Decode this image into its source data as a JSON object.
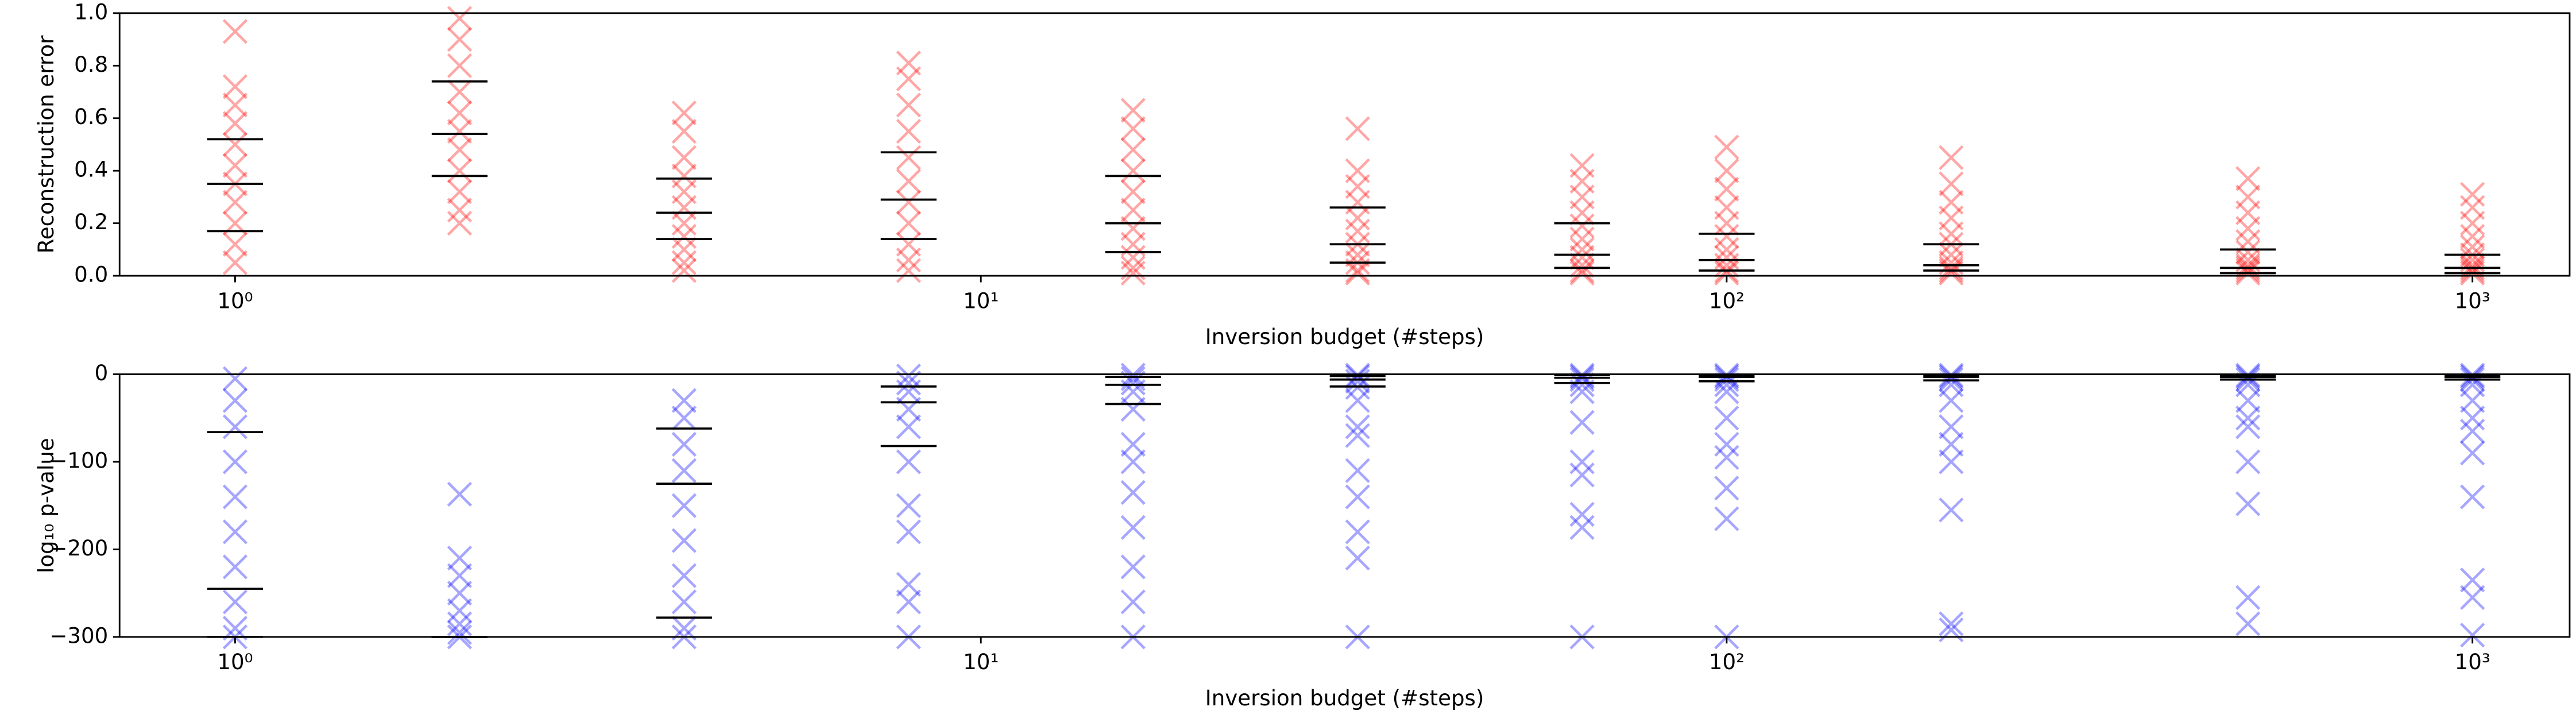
{
  "chart_data": [
    {
      "type": "scatter",
      "color": "#ff0000",
      "ylabel": "Reconstruction error",
      "xlabel": "Inversion budget (#steps)",
      "log_x": true,
      "xlim": [
        0.7,
        1350
      ],
      "ylim": [
        0,
        1
      ],
      "xticks": [
        {
          "value": 1,
          "label": "10⁰"
        },
        {
          "value": 10,
          "label": "10¹"
        },
        {
          "value": 100,
          "label": "10²"
        },
        {
          "value": 1000,
          "label": "10³"
        }
      ],
      "yticks": [
        {
          "value": 0,
          "label": "0.0"
        },
        {
          "value": 0.2,
          "label": "0.2"
        },
        {
          "value": 0.4,
          "label": "0.4"
        },
        {
          "value": 0.6,
          "label": "0.6"
        },
        {
          "value": 0.8,
          "label": "0.8"
        },
        {
          "value": 1,
          "label": "1.0"
        }
      ],
      "groups": [
        {
          "x": 1,
          "values": [
            0.93,
            0.72,
            0.65,
            0.58,
            0.5,
            0.42,
            0.35,
            0.28,
            0.2,
            0.12,
            0.05
          ],
          "quantiles": [
            0.17,
            0.35,
            0.52
          ]
        },
        {
          "x": 2,
          "values": [
            0.98,
            0.9,
            0.8,
            0.7,
            0.62,
            0.55,
            0.48,
            0.4,
            0.32,
            0.25,
            0.2
          ],
          "quantiles": [
            0.38,
            0.54,
            0.74
          ]
        },
        {
          "x": 4,
          "values": [
            0.62,
            0.55,
            0.45,
            0.38,
            0.32,
            0.26,
            0.2,
            0.15,
            0.1,
            0.05,
            0.02
          ],
          "quantiles": [
            0.14,
            0.24,
            0.37
          ]
        },
        {
          "x": 8,
          "values": [
            0.81,
            0.75,
            0.65,
            0.55,
            0.45,
            0.36,
            0.28,
            0.2,
            0.12,
            0.06,
            0.02
          ],
          "quantiles": [
            0.14,
            0.29,
            0.47
          ]
        },
        {
          "x": 16,
          "values": [
            0.63,
            0.56,
            0.48,
            0.4,
            0.32,
            0.25,
            0.18,
            0.12,
            0.07,
            0.03,
            0.01
          ],
          "quantiles": [
            0.09,
            0.2,
            0.38
          ]
        },
        {
          "x": 32,
          "values": [
            0.56,
            0.4,
            0.34,
            0.28,
            0.22,
            0.17,
            0.12,
            0.08,
            0.05,
            0.02,
            0.01
          ],
          "quantiles": [
            0.05,
            0.12,
            0.26
          ]
        },
        {
          "x": 64,
          "values": [
            0.42,
            0.36,
            0.3,
            0.24,
            0.19,
            0.14,
            0.1,
            0.07,
            0.04,
            0.02,
            0.01
          ],
          "quantiles": [
            0.03,
            0.08,
            0.2
          ]
        },
        {
          "x": 100,
          "values": [
            0.49,
            0.4,
            0.33,
            0.26,
            0.2,
            0.15,
            0.1,
            0.07,
            0.04,
            0.02,
            0.01
          ],
          "quantiles": [
            0.02,
            0.06,
            0.16
          ]
        },
        {
          "x": 200,
          "values": [
            0.45,
            0.35,
            0.28,
            0.22,
            0.16,
            0.12,
            0.08,
            0.05,
            0.03,
            0.02,
            0.01
          ],
          "quantiles": [
            0.02,
            0.04,
            0.12
          ]
        },
        {
          "x": 500,
          "values": [
            0.37,
            0.3,
            0.24,
            0.18,
            0.13,
            0.09,
            0.06,
            0.04,
            0.03,
            0.02,
            0.01
          ],
          "quantiles": [
            0.01,
            0.03,
            0.1
          ]
        },
        {
          "x": 1000,
          "values": [
            0.31,
            0.26,
            0.2,
            0.15,
            0.11,
            0.08,
            0.06,
            0.04,
            0.03,
            0.02,
            0.01
          ],
          "quantiles": [
            0.01,
            0.03,
            0.08
          ]
        }
      ]
    },
    {
      "type": "scatter",
      "color": "#0000ff",
      "ylabel": "log₁₀ p-value",
      "xlabel": "Inversion budget (#steps)",
      "log_x": true,
      "xlim": [
        0.7,
        1350
      ],
      "ylim": [
        -300,
        0
      ],
      "xticks": [
        {
          "value": 1,
          "label": "10⁰"
        },
        {
          "value": 10,
          "label": "10¹"
        },
        {
          "value": 100,
          "label": "10²"
        },
        {
          "value": 1000,
          "label": "10³"
        }
      ],
      "yticks": [
        0,
        {
          "value": -100,
          "label": "−100"
        },
        {
          "value": -200,
          "label": "−200"
        },
        {
          "value": -300,
          "label": "−300"
        }
      ],
      "groups": [
        {
          "x": 1,
          "values": [
            -5,
            -30,
            -60,
            -100,
            -140,
            -180,
            -220,
            -260,
            -290,
            -300
          ],
          "quantiles": [
            -300,
            -245,
            -66
          ]
        },
        {
          "x": 2,
          "values": [
            -137,
            -210,
            -230,
            -250,
            -270,
            -285,
            -295,
            -300
          ],
          "quantiles": [
            -300,
            -300,
            -300
          ]
        },
        {
          "x": 4,
          "values": [
            -30,
            -50,
            -80,
            -110,
            -150,
            -190,
            -230,
            -260,
            -290,
            -300
          ],
          "quantiles": [
            -278,
            -125,
            -62
          ]
        },
        {
          "x": 8,
          "values": [
            -2,
            -10,
            -20,
            -40,
            -60,
            -100,
            -150,
            -180,
            -240,
            -260,
            -300
          ],
          "quantiles": [
            -82,
            -32,
            -14
          ]
        },
        {
          "x": 16,
          "values": [
            -1,
            -5,
            -10,
            -20,
            -40,
            -80,
            -100,
            -135,
            -175,
            -220,
            -260,
            -300
          ],
          "quantiles": [
            -34,
            -12,
            -3
          ]
        },
        {
          "x": 32,
          "values": [
            -1,
            -3,
            -8,
            -15,
            -30,
            -60,
            -70,
            -110,
            -140,
            -180,
            -210,
            -300
          ],
          "quantiles": [
            -14,
            -6,
            -2
          ]
        },
        {
          "x": 64,
          "values": [
            -1,
            -3,
            -6,
            -12,
            -20,
            -55,
            -100,
            -115,
            -160,
            -175,
            -300
          ],
          "quantiles": [
            -10,
            -4,
            -1
          ]
        },
        {
          "x": 100,
          "values": [
            -1,
            -3,
            -6,
            -12,
            -20,
            -50,
            -80,
            -95,
            -130,
            -165,
            -300
          ],
          "quantiles": [
            -8,
            -3,
            -1
          ]
        },
        {
          "x": 200,
          "values": [
            -1,
            -3,
            -6,
            -12,
            -30,
            -60,
            -80,
            -100,
            -155,
            -285,
            -292
          ],
          "quantiles": [
            -7,
            -3,
            -1
          ]
        },
        {
          "x": 500,
          "values": [
            -1,
            -3,
            -6,
            -12,
            -30,
            -50,
            -60,
            -100,
            -148,
            -255,
            -285
          ],
          "quantiles": [
            -6,
            -3,
            -1
          ]
        },
        {
          "x": 1000,
          "values": [
            -1,
            -3,
            -6,
            -12,
            -30,
            -50,
            -65,
            -90,
            -140,
            -235,
            -255,
            -298
          ],
          "quantiles": [
            -6,
            -3,
            -1
          ]
        }
      ]
    }
  ]
}
